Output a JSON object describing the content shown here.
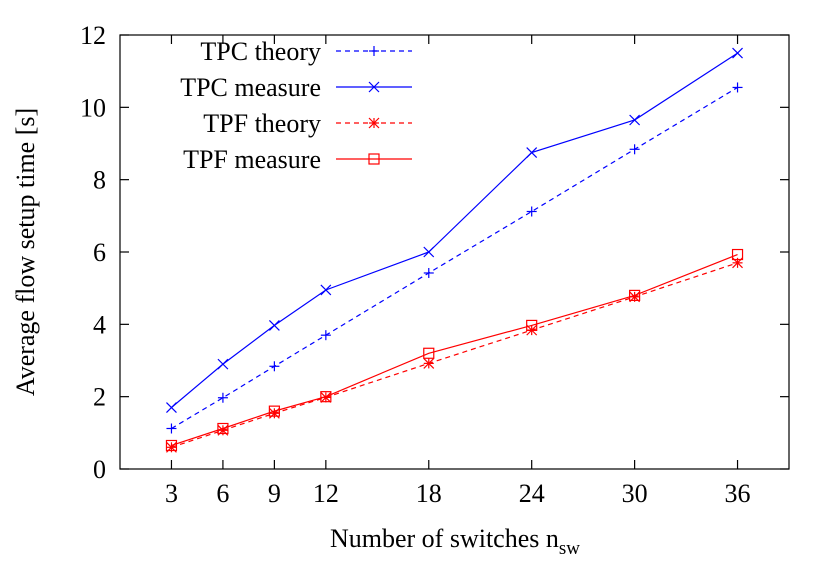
{
  "chart_data": {
    "type": "line",
    "xlabel": "Number of switches n",
    "xlabel_sub": "sw",
    "ylabel": "Average flow setup time [s]",
    "x": [
      3,
      6,
      9,
      12,
      18,
      24,
      30,
      36
    ],
    "xticks": [
      "3",
      "6",
      "9",
      "12",
      "18",
      "24",
      "30",
      "36"
    ],
    "xlim": [
      0,
      39
    ],
    "ylim": [
      0,
      12
    ],
    "yticks": [
      "0",
      "2",
      "4",
      "6",
      "8",
      "10",
      "12"
    ],
    "grid": false,
    "legend_position": "top-left",
    "series": [
      {
        "name": "TPC theory",
        "color": "#0000ff",
        "dashed": true,
        "marker": "plus",
        "values": [
          1.12,
          1.97,
          2.84,
          3.7,
          5.42,
          7.12,
          8.84,
          10.55
        ]
      },
      {
        "name": "TPC measure",
        "color": "#0000ff",
        "dashed": false,
        "marker": "cross",
        "values": [
          1.7,
          2.9,
          3.97,
          4.95,
          6.0,
          8.75,
          9.65,
          11.5
        ]
      },
      {
        "name": "TPF theory",
        "color": "#ff0000",
        "dashed": true,
        "marker": "star",
        "values": [
          0.6,
          1.07,
          1.54,
          1.98,
          2.92,
          3.84,
          4.76,
          5.7
        ]
      },
      {
        "name": "TPF measure",
        "color": "#ff0000",
        "dashed": false,
        "marker": "square",
        "values": [
          0.65,
          1.12,
          1.6,
          2.0,
          3.2,
          3.97,
          4.8,
          5.93
        ]
      }
    ]
  }
}
